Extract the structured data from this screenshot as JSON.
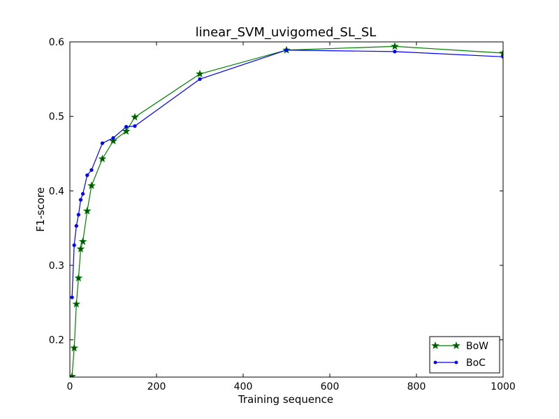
{
  "chart_data": {
    "type": "line",
    "title": "linear_SVM_uvigomed_SL_SL",
    "xlabel": "Training sequence",
    "ylabel": "F1-score",
    "xlim": [
      0,
      1000
    ],
    "ylim": [
      0.15,
      0.6
    ],
    "xticks": [
      0,
      200,
      400,
      600,
      800,
      1000
    ],
    "yticks": [
      0.2,
      0.3,
      0.4,
      0.5,
      0.6
    ],
    "grid": false,
    "legend_position": "bottom-right",
    "series": [
      {
        "name": "BoW",
        "color": "#007f00",
        "marker": "star",
        "x": [
          5,
          10,
          15,
          20,
          25,
          30,
          40,
          50,
          75,
          100,
          130,
          150,
          300,
          500,
          750,
          1000
        ],
        "y": [
          0.151,
          0.189,
          0.248,
          0.283,
          0.322,
          0.332,
          0.373,
          0.407,
          0.443,
          0.467,
          0.48,
          0.499,
          0.557,
          0.589,
          0.594,
          0.585
        ]
      },
      {
        "name": "BoC",
        "color": "#0000ff",
        "marker": "dot",
        "x": [
          5,
          10,
          15,
          20,
          25,
          30,
          40,
          50,
          75,
          100,
          130,
          150,
          300,
          500,
          750,
          1000
        ],
        "y": [
          0.257,
          0.327,
          0.353,
          0.368,
          0.388,
          0.396,
          0.421,
          0.428,
          0.464,
          0.471,
          0.486,
          0.487,
          0.55,
          0.589,
          0.587,
          0.58
        ]
      }
    ]
  }
}
